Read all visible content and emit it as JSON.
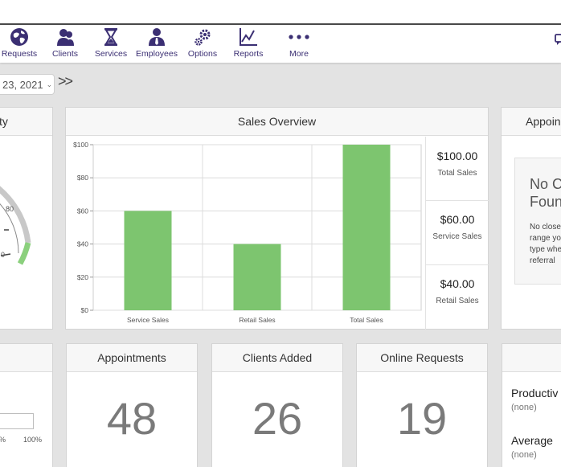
{
  "nav": {
    "items": [
      {
        "label": "Requests",
        "icon": "globe-icon"
      },
      {
        "label": "Clients",
        "icon": "users-icon"
      },
      {
        "label": "Services",
        "icon": "hourglass-icon"
      },
      {
        "label": "Employees",
        "icon": "employee-icon"
      },
      {
        "label": "Options",
        "icon": "gears-icon"
      },
      {
        "label": "Reports",
        "icon": "line-chart-icon"
      },
      {
        "label": "More",
        "icon": "ellipsis-icon"
      }
    ],
    "brand_color": "#3b2f73"
  },
  "date": {
    "value": "23, 2021",
    "next_label": ">>"
  },
  "capacity_card": {
    "title": "ty",
    "gauge_ticks": [
      "80",
      "0"
    ]
  },
  "sales_overview": {
    "title": "Sales Overview",
    "metrics": [
      {
        "value": "$100.00",
        "label": "Total Sales"
      },
      {
        "value": "$60.00",
        "label": "Service Sales"
      },
      {
        "value": "$40.00",
        "label": "Retail Sales"
      }
    ]
  },
  "chart_data": {
    "type": "bar",
    "categories": [
      "Service Sales",
      "Retail Sales",
      "Total Sales"
    ],
    "values": [
      60,
      40,
      100
    ],
    "yticks": [
      "$100",
      "$80",
      "$60",
      "$40",
      "$20",
      "$0"
    ],
    "ylim": [
      0,
      100
    ],
    "grid": true,
    "bar_color": "#7dc56f"
  },
  "appointments_panel": {
    "title": "Appoin",
    "no_found_title_1": "No C",
    "no_found_title_2": "Foun",
    "desc_lines": [
      "No close",
      "range yo",
      "type whe",
      "referral"
    ]
  },
  "progress_card": {
    "labels": [
      "%",
      "100%"
    ]
  },
  "stats": [
    {
      "title": "Appointments",
      "value": "48"
    },
    {
      "title": "Clients Added",
      "value": "26"
    },
    {
      "title": "Online Requests",
      "value": "19"
    }
  ],
  "productivity": {
    "items": [
      {
        "label": "Productiv",
        "value": "(none)"
      },
      {
        "label": "Average",
        "value": "(none)"
      }
    ]
  }
}
